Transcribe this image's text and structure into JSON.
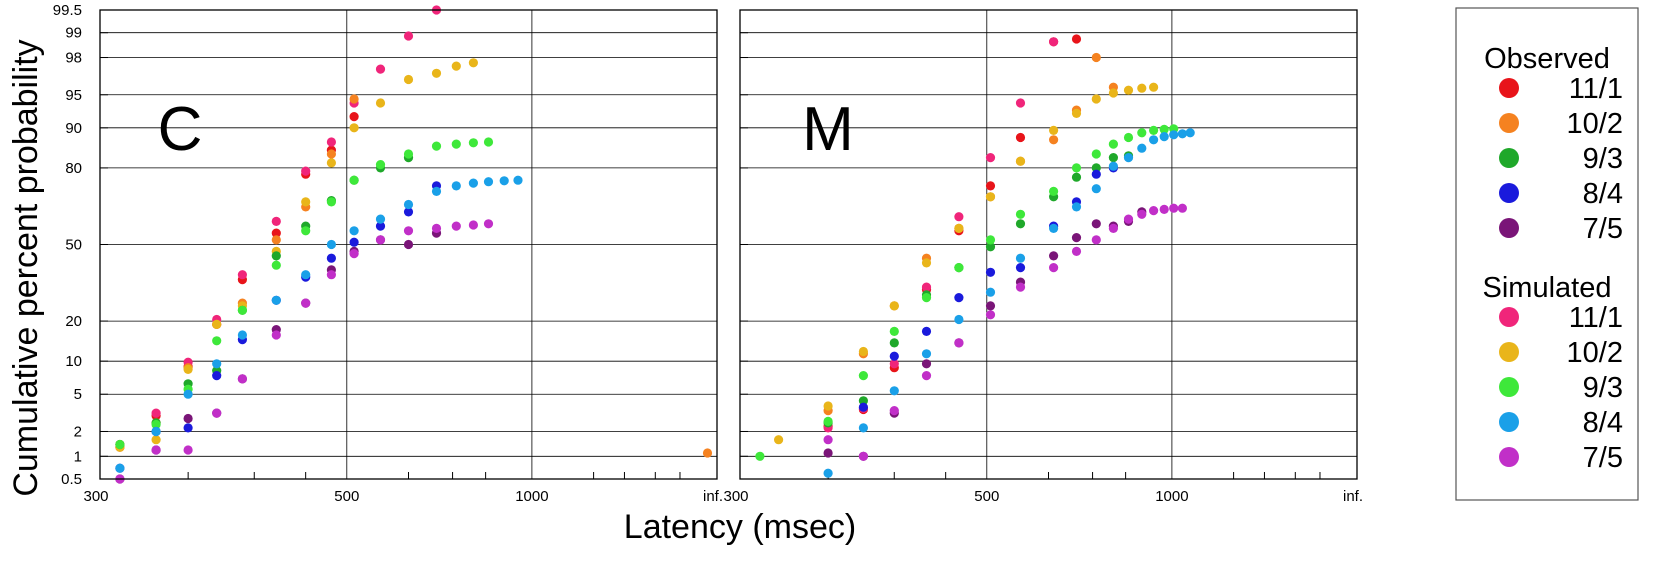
{
  "chart_data": {
    "type": "scatter",
    "xlabel": "Latency (msec)",
    "ylabel": "Cumulative percent probability",
    "x_scale": "reciprocal",
    "y_scale": "normal-probability",
    "x_ticks": [
      {
        "label": "300",
        "value": 300
      },
      {
        "label": "500",
        "value": 500
      },
      {
        "label": "1000",
        "value": 1000
      },
      {
        "label": "inf.",
        "value": "inf"
      }
    ],
    "y_ticks": [
      "0.5",
      "1",
      "2",
      "5",
      "10",
      "20",
      "50",
      "80",
      "90",
      "95",
      "98",
      "99",
      "99.5"
    ],
    "grid": true,
    "legend": {
      "position": "right",
      "groups": [
        {
          "title": "Observed",
          "entries": [
            {
              "label": "11/1",
              "color": "#e8141a"
            },
            {
              "label": "10/2",
              "color": "#f58220"
            },
            {
              "label": "9/3",
              "color": "#1fa82a"
            },
            {
              "label": "8/4",
              "color": "#1a1adc"
            },
            {
              "label": "7/5",
              "color": "#7a1578"
            }
          ]
        },
        {
          "title": "Simulated",
          "entries": [
            {
              "label": "11/1",
              "color": "#f0257a"
            },
            {
              "label": "10/2",
              "color": "#e9b51a"
            },
            {
              "label": "9/3",
              "color": "#3ee83a"
            },
            {
              "label": "8/4",
              "color": "#1aa0e8"
            },
            {
              "label": "7/5",
              "color": "#c12fc8"
            }
          ]
        }
      ]
    },
    "panels": [
      {
        "label": "C",
        "series": [
          {
            "group": "Observed",
            "name": "11/1",
            "color": "#e8141a",
            "x": [
              310,
              330,
              350,
              370,
              390,
              420,
              450,
              480,
              510
            ],
            "y": [
              1.4,
              3,
              9,
              19,
              35,
              55,
              78,
              85,
              92
            ]
          },
          {
            "group": "Simulated",
            "name": "11/1",
            "color": "#f0257a",
            "x": [
              310,
              330,
              350,
              370,
              390,
              420,
              450,
              480,
              510,
              550,
              600,
              660
            ],
            "y": [
              1.3,
              3.2,
              9.8,
              20.5,
              37,
              60,
              79,
              87,
              94,
              97.3,
              98.9,
              99.5
            ]
          },
          {
            "group": "Observed",
            "name": "10/2",
            "color": "#f58220",
            "x": [
              310,
              330,
              350,
              370,
              390,
              420,
              450,
              480,
              510
            ],
            "y": [
              1.3,
              2.5,
              8.8,
              19,
              26,
              52,
              66,
              84,
              94.5
            ]
          },
          {
            "group": "Simulated",
            "name": "10/2",
            "color": "#e9b51a",
            "x": [
              310,
              330,
              350,
              370,
              390,
              420,
              450,
              480,
              510,
              550,
              600,
              660,
              710,
              760
            ],
            "y": [
              1.3,
              1.6,
              8.5,
              19,
              25,
              47,
              68,
              81.5,
              90,
              94,
              96.5,
              97,
              97.5,
              97.7
            ]
          },
          {
            "group": "Observed",
            "name": "9/3",
            "color": "#1fa82a",
            "x": [
              310,
              330,
              350,
              370,
              390,
              420,
              450,
              480,
              510,
              550,
              600
            ],
            "y": [
              1.4,
              2.5,
              6.3,
              8.3,
              23.5,
              45,
              58,
              68.5,
              76,
              80,
              83
            ]
          },
          {
            "group": "Simulated",
            "name": "9/3",
            "color": "#3ee83a",
            "x": [
              310,
              330,
              350,
              370,
              390,
              420,
              450,
              480,
              510,
              550,
              600,
              660,
              710,
              760,
              810
            ],
            "y": [
              1.4,
              2.4,
              5.6,
              14.5,
              23.5,
              41,
              56,
              68,
              76,
              81,
              84,
              86,
              86.5,
              86.8,
              87
            ]
          },
          {
            "group": "Observed",
            "name": "8/4",
            "color": "#1a1adc",
            "x": [
              310,
              330,
              350,
              370,
              390,
              420,
              450,
              480,
              510,
              550,
              600,
              660
            ],
            "y": [
              0.7,
              2,
              2.2,
              7.5,
              14.8,
              27,
              36,
              44,
              51,
              58,
              64,
              74
            ]
          },
          {
            "group": "Simulated",
            "name": "8/4",
            "color": "#1aa0e8",
            "x": [
              310,
              330,
              350,
              370,
              390,
              420,
              450,
              480,
              510,
              550,
              600,
              660,
              710,
              760,
              810,
              870,
              930
            ],
            "y": [
              0.7,
              2,
              5,
              9.5,
              16,
              27,
              37,
              50,
              56,
              61,
              67,
              72,
              74,
              75,
              75.5,
              75.8,
              76
            ]
          },
          {
            "group": "Observed",
            "name": "7/5",
            "color": "#7a1578",
            "x": [
              310,
              330,
              350,
              370,
              390,
              420,
              450,
              480,
              510,
              550,
              600,
              660
            ],
            "y": [
              0.5,
              1.2,
              2.8,
              3.2,
              7,
              17.5,
              26,
              39,
              47,
              52,
              50,
              55
            ]
          },
          {
            "group": "Simulated",
            "name": "7/5",
            "color": "#c12fc8",
            "x": [
              310,
              330,
              350,
              370,
              390,
              420,
              450,
              480,
              510,
              550,
              600,
              660,
              710,
              760,
              810
            ],
            "y": [
              0.5,
              1.2,
              1.2,
              3.2,
              7,
              16,
              26,
              37,
              46,
              52,
              56,
              57,
              58,
              58.5,
              59
            ]
          }
        ]
      },
      {
        "label": "M",
        "series": [
          {
            "group": "Observed",
            "name": "11/1",
            "color": "#e8141a",
            "x": [
              350,
              375,
              400,
              430,
              465,
              505,
              550,
              610,
              660
            ],
            "y": [
              2.3,
              3.5,
              8.8,
              31,
              56,
              74,
              88,
              98.7,
              98.8
            ]
          },
          {
            "group": "Simulated",
            "name": "11/1",
            "color": "#f0257a",
            "x": [
              350,
              375,
              400,
              430,
              465,
              505,
              550,
              610
            ],
            "y": [
              2.2,
              3.6,
              9.5,
              32,
              62,
              83,
              94,
              98.7
            ]
          },
          {
            "group": "Observed",
            "name": "10/2",
            "color": "#f58220",
            "x": [
              285,
              350,
              375,
              400,
              430,
              465,
              505,
              550,
              610,
              660,
              710,
              760
            ],
            "y": [
              1.1,
              3.4,
              11.5,
              25,
              44,
              57,
              70,
              82,
              87.5,
              93,
              98,
              95.8
            ]
          },
          {
            "group": "Simulated",
            "name": "10/2",
            "color": "#e9b51a",
            "x": [
              320,
              350,
              375,
              400,
              430,
              465,
              505,
              550,
              610,
              660,
              710,
              760,
              810,
              860,
              910
            ],
            "y": [
              1.6,
              3.8,
              12,
              25,
              42,
              57,
              70,
              82,
              89.5,
              92.5,
              94.5,
              95.2,
              95.5,
              95.7,
              95.8
            ]
          },
          {
            "group": "Observed",
            "name": "9/3",
            "color": "#1fa82a",
            "x": [
              350,
              375,
              400,
              430,
              465,
              505,
              550,
              610,
              660,
              710,
              760,
              810
            ],
            "y": [
              2.5,
              4.3,
              14,
              29,
              40,
              49,
              59,
              70,
              77,
              80,
              83,
              83.5
            ]
          },
          {
            "group": "Simulated",
            "name": "9/3",
            "color": "#3ee83a",
            "x": [
              310,
              350,
              375,
              400,
              430,
              465,
              505,
              550,
              610,
              660,
              710,
              760,
              810,
              860,
              910,
              960,
              1010
            ],
            "y": [
              1,
              2.6,
              7.5,
              17,
              28,
              40,
              52,
              63,
              72,
              80,
              84,
              86.5,
              88,
              89,
              89.5,
              89.7,
              89.8
            ]
          },
          {
            "group": "Observed",
            "name": "8/4",
            "color": "#1a1adc",
            "x": [
              375,
              400,
              430,
              465,
              505,
              550,
              610,
              660,
              710,
              760
            ],
            "y": [
              3.7,
              11,
              17,
              28,
              38,
              40,
              58,
              68,
              78,
              80
            ]
          },
          {
            "group": "Simulated",
            "name": "8/4",
            "color": "#1aa0e8",
            "x": [
              350,
              375,
              400,
              430,
              465,
              505,
              550,
              610,
              660,
              710,
              760,
              810,
              860,
              910,
              960,
              1010,
              1060,
              1110
            ],
            "y": [
              0.6,
              2.2,
              5.4,
              11.5,
              20.5,
              30,
              44,
              57,
              66,
              73,
              80.5,
              83,
              85.5,
              87.5,
              88.2,
              88.6,
              88.8,
              89
            ]
          },
          {
            "group": "Observed",
            "name": "7/5",
            "color": "#7a1578",
            "x": [
              350,
              375,
              400,
              430,
              465,
              505,
              550,
              610,
              660,
              710,
              760,
              810,
              860
            ],
            "y": [
              1.1,
              1,
              3.2,
              9.5,
              14,
              25,
              34,
              45,
              53,
              59,
              58,
              60,
              64
            ]
          },
          {
            "group": "Simulated",
            "name": "7/5",
            "color": "#c12fc8",
            "x": [
              350,
              375,
              400,
              430,
              465,
              505,
              550,
              610,
              660,
              710,
              760,
              810,
              860,
              910,
              960,
              1010,
              1060
            ],
            "y": [
              1.6,
              1,
              3.4,
              7.5,
              14,
              22,
              32,
              40,
              47,
              52,
              57,
              61,
              63,
              64.5,
              65,
              65.5,
              65.5
            ]
          }
        ]
      }
    ]
  }
}
